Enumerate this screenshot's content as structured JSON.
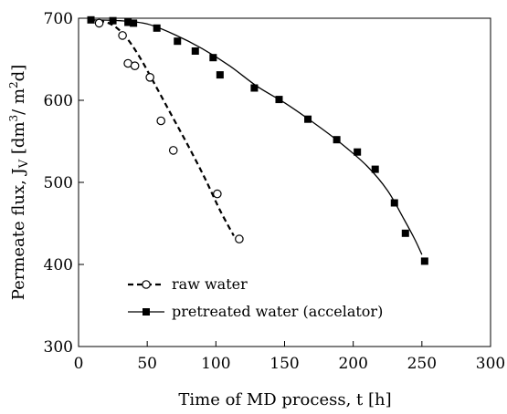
{
  "chart_data": {
    "type": "scatter",
    "title": "",
    "xlabel": "Time of MD process, t [h]",
    "ylabel_parts": {
      "a": "Permeate flux, J",
      "sub": "V",
      "b": " [dm",
      "sup": "3",
      "c": "/ m",
      "sup2": "2",
      "d": "d]"
    },
    "xlim": [
      0,
      300
    ],
    "ylim": [
      300,
      700
    ],
    "xticks": [
      0,
      50,
      100,
      150,
      200,
      250,
      300
    ],
    "yticks": [
      300,
      400,
      500,
      600,
      700
    ],
    "grid": false,
    "legend_position": "bottom-left",
    "series": [
      {
        "name": "raw water",
        "marker": "open-circle",
        "line": "dashed",
        "color": "#000000",
        "points": [
          [
            15,
            694
          ],
          [
            32,
            679
          ],
          [
            36,
            645
          ],
          [
            41,
            642
          ],
          [
            52,
            628
          ],
          [
            60,
            575
          ],
          [
            69,
            539
          ],
          [
            101,
            486
          ],
          [
            117,
            431
          ]
        ],
        "fit": [
          [
            8,
            698
          ],
          [
            22,
            694
          ],
          [
            33,
            680
          ],
          [
            44,
            654
          ],
          [
            56,
            618
          ],
          [
            68,
            581
          ],
          [
            80,
            544
          ],
          [
            92,
            505
          ],
          [
            103,
            466
          ],
          [
            113,
            435
          ]
        ]
      },
      {
        "name": "pretreated water (accelator)",
        "marker": "filled-square",
        "line": "solid",
        "color": "#000000",
        "points": [
          [
            9,
            698
          ],
          [
            25,
            697
          ],
          [
            36,
            695
          ],
          [
            40,
            694
          ],
          [
            57,
            688
          ],
          [
            72,
            672
          ],
          [
            85,
            660
          ],
          [
            98,
            652
          ],
          [
            103,
            631
          ],
          [
            128,
            615
          ],
          [
            146,
            601
          ],
          [
            167,
            577
          ],
          [
            188,
            552
          ],
          [
            203,
            537
          ],
          [
            216,
            516
          ],
          [
            230,
            475
          ],
          [
            238,
            438
          ],
          [
            252,
            404
          ]
        ],
        "fit": [
          [
            8,
            698
          ],
          [
            30,
            697
          ],
          [
            50,
            693
          ],
          [
            70,
            680
          ],
          [
            90,
            663
          ],
          [
            110,
            642
          ],
          [
            130,
            617
          ],
          [
            150,
            597
          ],
          [
            170,
            574
          ],
          [
            190,
            549
          ],
          [
            210,
            520
          ],
          [
            225,
            490
          ],
          [
            237,
            455
          ],
          [
            245,
            430
          ],
          [
            250,
            412
          ]
        ]
      }
    ]
  }
}
